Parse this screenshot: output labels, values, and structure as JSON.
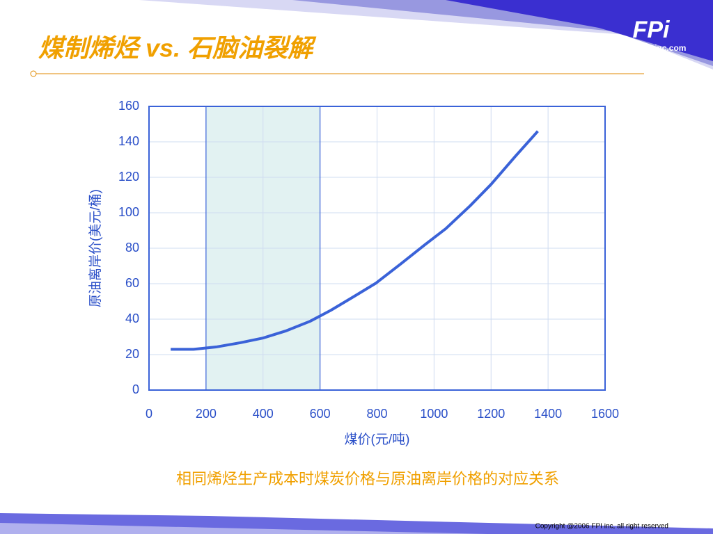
{
  "header": {
    "title": "煤制烯烃 vs. 石脑油裂解",
    "logo": "FPi",
    "website": "www.fpi-inc.com"
  },
  "chart_data": {
    "type": "line",
    "x": [
      76,
      156,
      235,
      320,
      401,
      479,
      565,
      638,
      711,
      797,
      882,
      968,
      1041,
      1127,
      1200,
      1286,
      1364
    ],
    "series": [
      {
        "color": "#3a62d8",
        "values": [
          23,
          23,
          24.3,
          26.7,
          29.4,
          33.3,
          38.8,
          45,
          52,
          60.4,
          71,
          82,
          91,
          104,
          116,
          132,
          146
        ]
      }
    ],
    "xlabel": "煤价(元/吨)",
    "ylabel": "原油离岸价(美元/桶)",
    "xlim": [
      0,
      1600
    ],
    "xticks": [
      0,
      200,
      400,
      600,
      800,
      1000,
      1200,
      1400,
      1600
    ],
    "ylim": [
      0,
      160
    ],
    "yticks": [
      0,
      20,
      40,
      60,
      80,
      100,
      120,
      140,
      160
    ],
    "highlight_range": [
      200,
      600
    ],
    "grid": true
  },
  "caption": "相同烯烃生产成本时煤炭价格与原油离岸价格的对应关系",
  "footer": {
    "copyright": "Copyright @2006 FPI inc, all right reserved"
  }
}
